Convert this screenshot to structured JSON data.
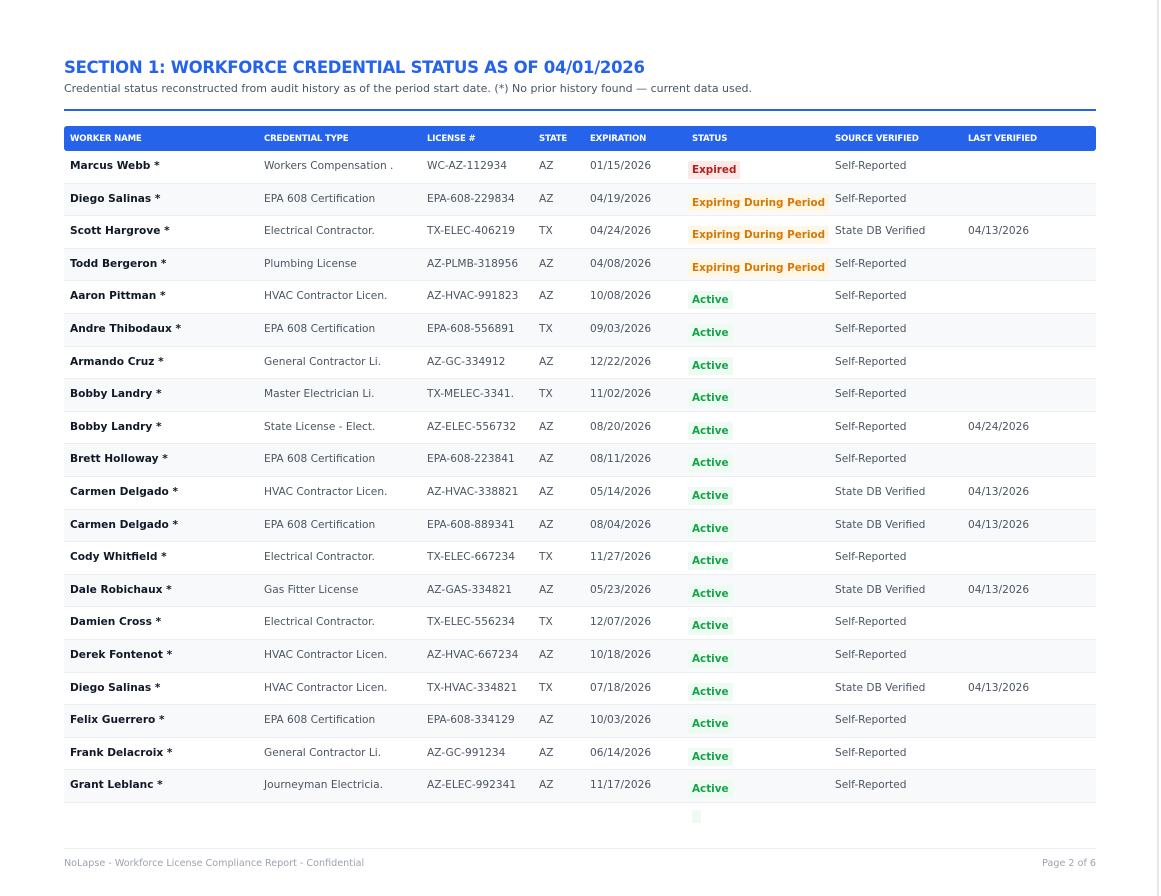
{
  "header": {
    "title": "SECTION 1: WORKFORCE CREDENTIAL STATUS AS OF 04/01/2026",
    "subtitle": "Credential status reconstructed from audit history as of the period start date. (*) No prior history found — current data used."
  },
  "table": {
    "columns": [
      "WORKER NAME",
      "CREDENTIAL TYPE",
      "LICENSE #",
      "STATE",
      "EXPIRATION",
      "STATUS",
      "SOURCE VERIFIED",
      "LAST VERIFIED"
    ],
    "status_colors": {
      "Expired": {
        "text": "#b91c1c",
        "bg": "#fde8e8"
      },
      "Expiring During Period": {
        "text": "#d97706",
        "bg": "#fef7e6"
      },
      "Active": {
        "text": "#16a34a",
        "bg": "#eefbf2"
      }
    },
    "rows": [
      {
        "worker": "Marcus Webb *",
        "credential": "Workers Compensation .",
        "license": "WC-AZ-112934",
        "state": "AZ",
        "expiration": "01/15/2026",
        "status": "Expired",
        "source": "Self-Reported"
      },
      {
        "worker": "Diego Salinas *",
        "credential": "EPA 608 Certification",
        "license": "EPA-608-229834",
        "state": "AZ",
        "expiration": "04/19/2026",
        "status": "Expiring During Period",
        "source": "Self-Reported"
      },
      {
        "worker": "Scott Hargrove *",
        "credential": "Electrical Contractor.",
        "license": "TX-ELEC-406219",
        "state": "TX",
        "expiration": "04/24/2026",
        "status": "Expiring During Period",
        "source": "State DB Verified",
        "last_verified": "04/13/2026"
      },
      {
        "worker": "Todd Bergeron *",
        "credential": "Plumbing License",
        "license": "AZ-PLMB-318956",
        "state": "AZ",
        "expiration": "04/08/2026",
        "status": "Expiring During Period",
        "source": "Self-Reported"
      },
      {
        "worker": "Aaron Pittman *",
        "credential": "HVAC Contractor Licen.",
        "license": "AZ-HVAC-991823",
        "state": "AZ",
        "expiration": "10/08/2026",
        "status": "Active",
        "source": "Self-Reported"
      },
      {
        "worker": "Andre Thibodaux *",
        "credential": "EPA 608 Certification",
        "license": "EPA-608-556891",
        "state": "TX",
        "expiration": "09/03/2026",
        "status": "Active",
        "source": "Self-Reported"
      },
      {
        "worker": "Armando Cruz *",
        "credential": "General Contractor Li.",
        "license": "AZ-GC-334912",
        "state": "AZ",
        "expiration": "12/22/2026",
        "status": "Active",
        "source": "Self-Reported"
      },
      {
        "worker": "Bobby Landry *",
        "credential": "Master Electrician Li.",
        "license": "TX-MELEC-3341.",
        "state": "TX",
        "expiration": "11/02/2026",
        "status": "Active",
        "source": "Self-Reported"
      },
      {
        "worker": "Bobby Landry *",
        "credential": "State License - Elect.",
        "license": "AZ-ELEC-556732",
        "state": "AZ",
        "expiration": "08/20/2026",
        "status": "Active",
        "source": "Self-Reported",
        "last_verified": "04/24/2026"
      },
      {
        "worker": "Brett Holloway *",
        "credential": "EPA 608 Certification",
        "license": "EPA-608-223841",
        "state": "AZ",
        "expiration": "08/11/2026",
        "status": "Active",
        "source": "Self-Reported"
      },
      {
        "worker": "Carmen Delgado *",
        "credential": "HVAC Contractor Licen.",
        "license": "AZ-HVAC-338821",
        "state": "AZ",
        "expiration": "05/14/2026",
        "status": "Active",
        "source": "State DB Verified",
        "last_verified": "04/13/2026"
      },
      {
        "worker": "Carmen Delgado *",
        "credential": "EPA 608 Certification",
        "license": "EPA-608-889341",
        "state": "AZ",
        "expiration": "08/04/2026",
        "status": "Active",
        "source": "State DB Verified",
        "last_verified": "04/13/2026"
      },
      {
        "worker": "Cody Whitfield *",
        "credential": "Electrical Contractor.",
        "license": "TX-ELEC-667234",
        "state": "TX",
        "expiration": "11/27/2026",
        "status": "Active",
        "source": "Self-Reported"
      },
      {
        "worker": "Dale Robichaux *",
        "credential": "Gas Fitter License",
        "license": "AZ-GAS-334821",
        "state": "AZ",
        "expiration": "05/23/2026",
        "status": "Active",
        "source": "State DB Verified",
        "last_verified": "04/13/2026"
      },
      {
        "worker": "Damien Cross *",
        "credential": "Electrical Contractor.",
        "license": "TX-ELEC-556234",
        "state": "TX",
        "expiration": "12/07/2026",
        "status": "Active",
        "source": "Self-Reported"
      },
      {
        "worker": "Derek Fontenot *",
        "credential": "HVAC Contractor Licen.",
        "license": "AZ-HVAC-667234",
        "state": "AZ",
        "expiration": "10/18/2026",
        "status": "Active",
        "source": "Self-Reported"
      },
      {
        "worker": "Diego Salinas *",
        "credential": "HVAC Contractor Licen.",
        "license": "TX-HVAC-334821",
        "state": "TX",
        "expiration": "07/18/2026",
        "status": "Active",
        "source": "State DB Verified",
        "last_verified": "04/13/2026"
      },
      {
        "worker": "Felix Guerrero *",
        "credential": "EPA 608 Certification",
        "license": "EPA-608-334129",
        "state": "AZ",
        "expiration": "10/03/2026",
        "status": "Active",
        "source": "Self-Reported"
      },
      {
        "worker": "Frank Delacroix *",
        "credential": "General Contractor Li.",
        "license": "AZ-GC-991234",
        "state": "AZ",
        "expiration": "06/14/2026",
        "status": "Active",
        "source": "Self-Reported"
      },
      {
        "worker": "Grant Leblanc *",
        "credential": "Journeyman Electricia.",
        "license": "AZ-ELEC-992341",
        "state": "AZ",
        "expiration": "11/17/2026",
        "status": "Active",
        "source": "Self-Reported"
      }
    ]
  },
  "footer": {
    "left": "NoLapse - Workforce License Compliance Report - Confidential",
    "right": "Page 2 of 6"
  }
}
